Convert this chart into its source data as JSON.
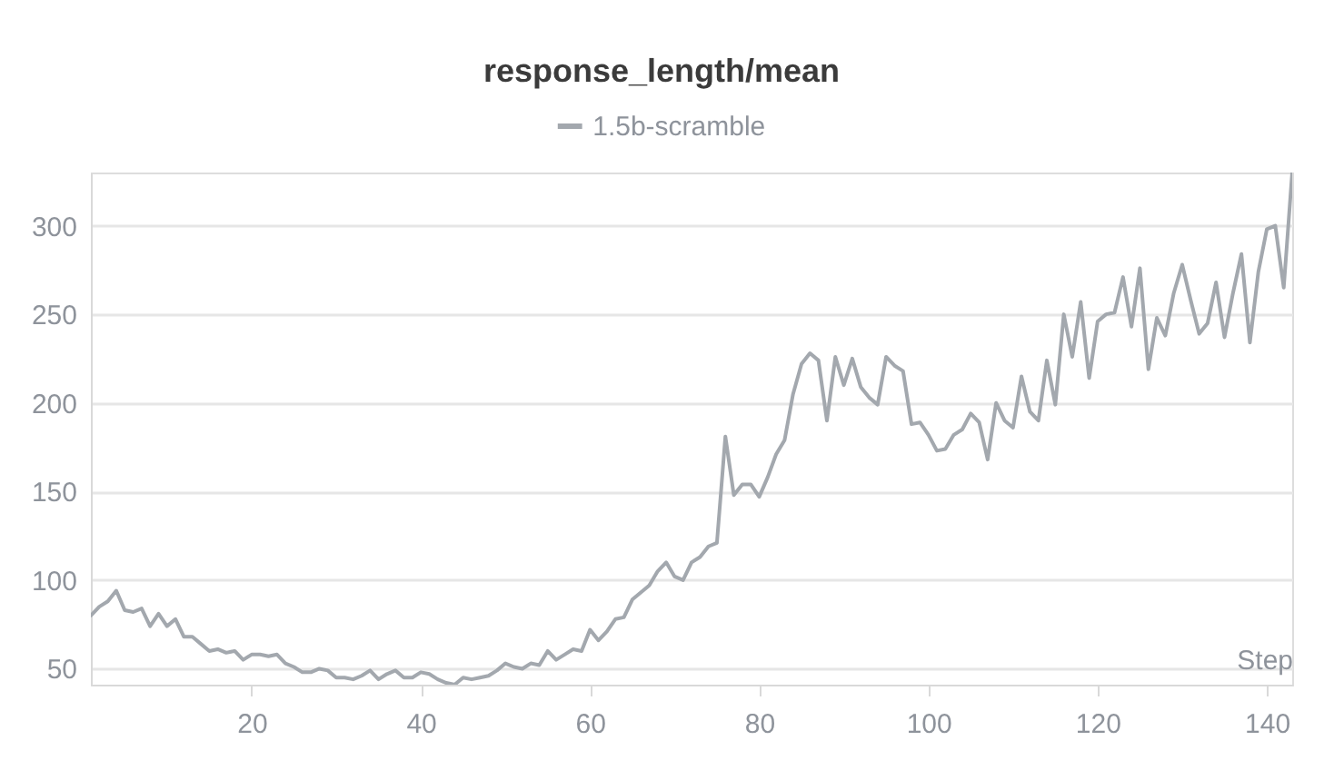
{
  "chart_data": {
    "type": "line",
    "title": "response_length/mean",
    "xlabel": "Step",
    "x": [
      1,
      2,
      3,
      4,
      5,
      6,
      7,
      8,
      9,
      10,
      11,
      12,
      13,
      14,
      15,
      16,
      17,
      18,
      19,
      20,
      21,
      22,
      23,
      24,
      25,
      26,
      27,
      28,
      29,
      30,
      31,
      32,
      33,
      34,
      35,
      36,
      37,
      38,
      39,
      40,
      41,
      42,
      43,
      44,
      45,
      46,
      47,
      48,
      49,
      50,
      51,
      52,
      53,
      54,
      55,
      56,
      57,
      58,
      59,
      60,
      61,
      62,
      63,
      64,
      65,
      66,
      67,
      68,
      69,
      70,
      71,
      72,
      73,
      74,
      75,
      76,
      77,
      78,
      79,
      80,
      81,
      82,
      83,
      84,
      85,
      86,
      87,
      88,
      89,
      90,
      91,
      92,
      93,
      94,
      95,
      96,
      97,
      98,
      99,
      100,
      101,
      102,
      103,
      104,
      105,
      106,
      107,
      108,
      109,
      110,
      111,
      112,
      113,
      114,
      115,
      116,
      117,
      118,
      119,
      120,
      121,
      122,
      123,
      124,
      125,
      126,
      127,
      128,
      129,
      130,
      131,
      132,
      133,
      134,
      135,
      136,
      137,
      138,
      139,
      140,
      141,
      142,
      143
    ],
    "series": [
      {
        "name": "1.5b-scramble",
        "color": "#a3a8ae",
        "values": [
          80,
          85,
          88,
          94,
          83,
          82,
          84,
          74,
          81,
          74,
          78,
          68,
          68,
          64,
          60,
          61,
          59,
          60,
          55,
          58,
          58,
          57,
          58,
          53,
          51,
          48,
          48,
          50,
          49,
          45,
          45,
          44,
          46,
          49,
          44,
          47,
          49,
          45,
          45,
          48,
          47,
          44,
          42,
          41,
          45,
          44,
          45,
          46,
          49,
          53,
          51,
          50,
          53,
          52,
          60,
          55,
          58,
          61,
          60,
          72,
          66,
          71,
          78,
          79,
          89,
          93,
          97,
          105,
          110,
          102,
          100,
          110,
          113,
          119,
          121,
          181,
          148,
          154,
          154,
          147,
          158,
          171,
          179,
          205,
          222,
          228,
          224,
          190,
          226,
          210,
          225,
          209,
          203,
          199,
          226,
          221,
          218,
          188,
          189,
          182,
          173,
          174,
          182,
          185,
          194,
          189,
          168,
          200,
          190,
          186,
          215,
          195,
          190,
          224,
          199,
          250,
          226,
          257,
          214,
          246,
          250,
          251,
          271,
          243,
          276,
          219,
          248,
          238,
          262,
          278,
          258,
          239,
          245,
          268,
          237,
          262,
          284,
          234,
          274,
          298,
          300,
          265,
          330
        ]
      }
    ],
    "xlim": [
      1,
      143
    ],
    "xticks": [
      20,
      40,
      60,
      80,
      100,
      120,
      140
    ],
    "ylim": [
      41,
      330
    ],
    "yticks": [
      50,
      100,
      150,
      200,
      250,
      300
    ],
    "grid": "y",
    "legend": "top",
    "line_style": "solid"
  }
}
